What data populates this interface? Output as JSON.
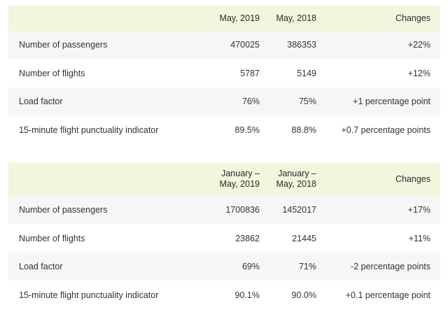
{
  "monthly": {
    "headers": [
      "",
      "May, 2019",
      "May, 2018",
      "Changes"
    ],
    "rows": [
      {
        "label": "Number of passengers",
        "a": "470025",
        "b": "386353",
        "change": "+22%"
      },
      {
        "label": "Number of flights",
        "a": "5787",
        "b": "5149",
        "change": "+12%"
      },
      {
        "label": "Load factor",
        "a": "76%",
        "b": "75%",
        "change": "+1 percentage point"
      },
      {
        "label": "15-minute flight punctuality indicator",
        "a": "89.5%",
        "b": "88.8%",
        "change": "+0.7 percentage points"
      }
    ]
  },
  "cumulative": {
    "headers": [
      "",
      "January – May, 2019",
      "January – May, 2018",
      "Changes"
    ],
    "header_lines": {
      "a": [
        "January –",
        "May, 2019"
      ],
      "b": [
        "January –",
        "May, 2018"
      ]
    },
    "rows": [
      {
        "label": "Number of passengers",
        "a": "1700836",
        "b": "1452017",
        "change": "+17%"
      },
      {
        "label": "Number of flights",
        "a": "23862",
        "b": "21445",
        "change": "+11%"
      },
      {
        "label": "Load factor",
        "a": "69%",
        "b": "71%",
        "change": "-2 percentage points"
      },
      {
        "label": "15-minute flight punctuality indicator",
        "a": "90.1%",
        "b": "90.0%",
        "change": "+0.1 percentage point"
      }
    ]
  }
}
